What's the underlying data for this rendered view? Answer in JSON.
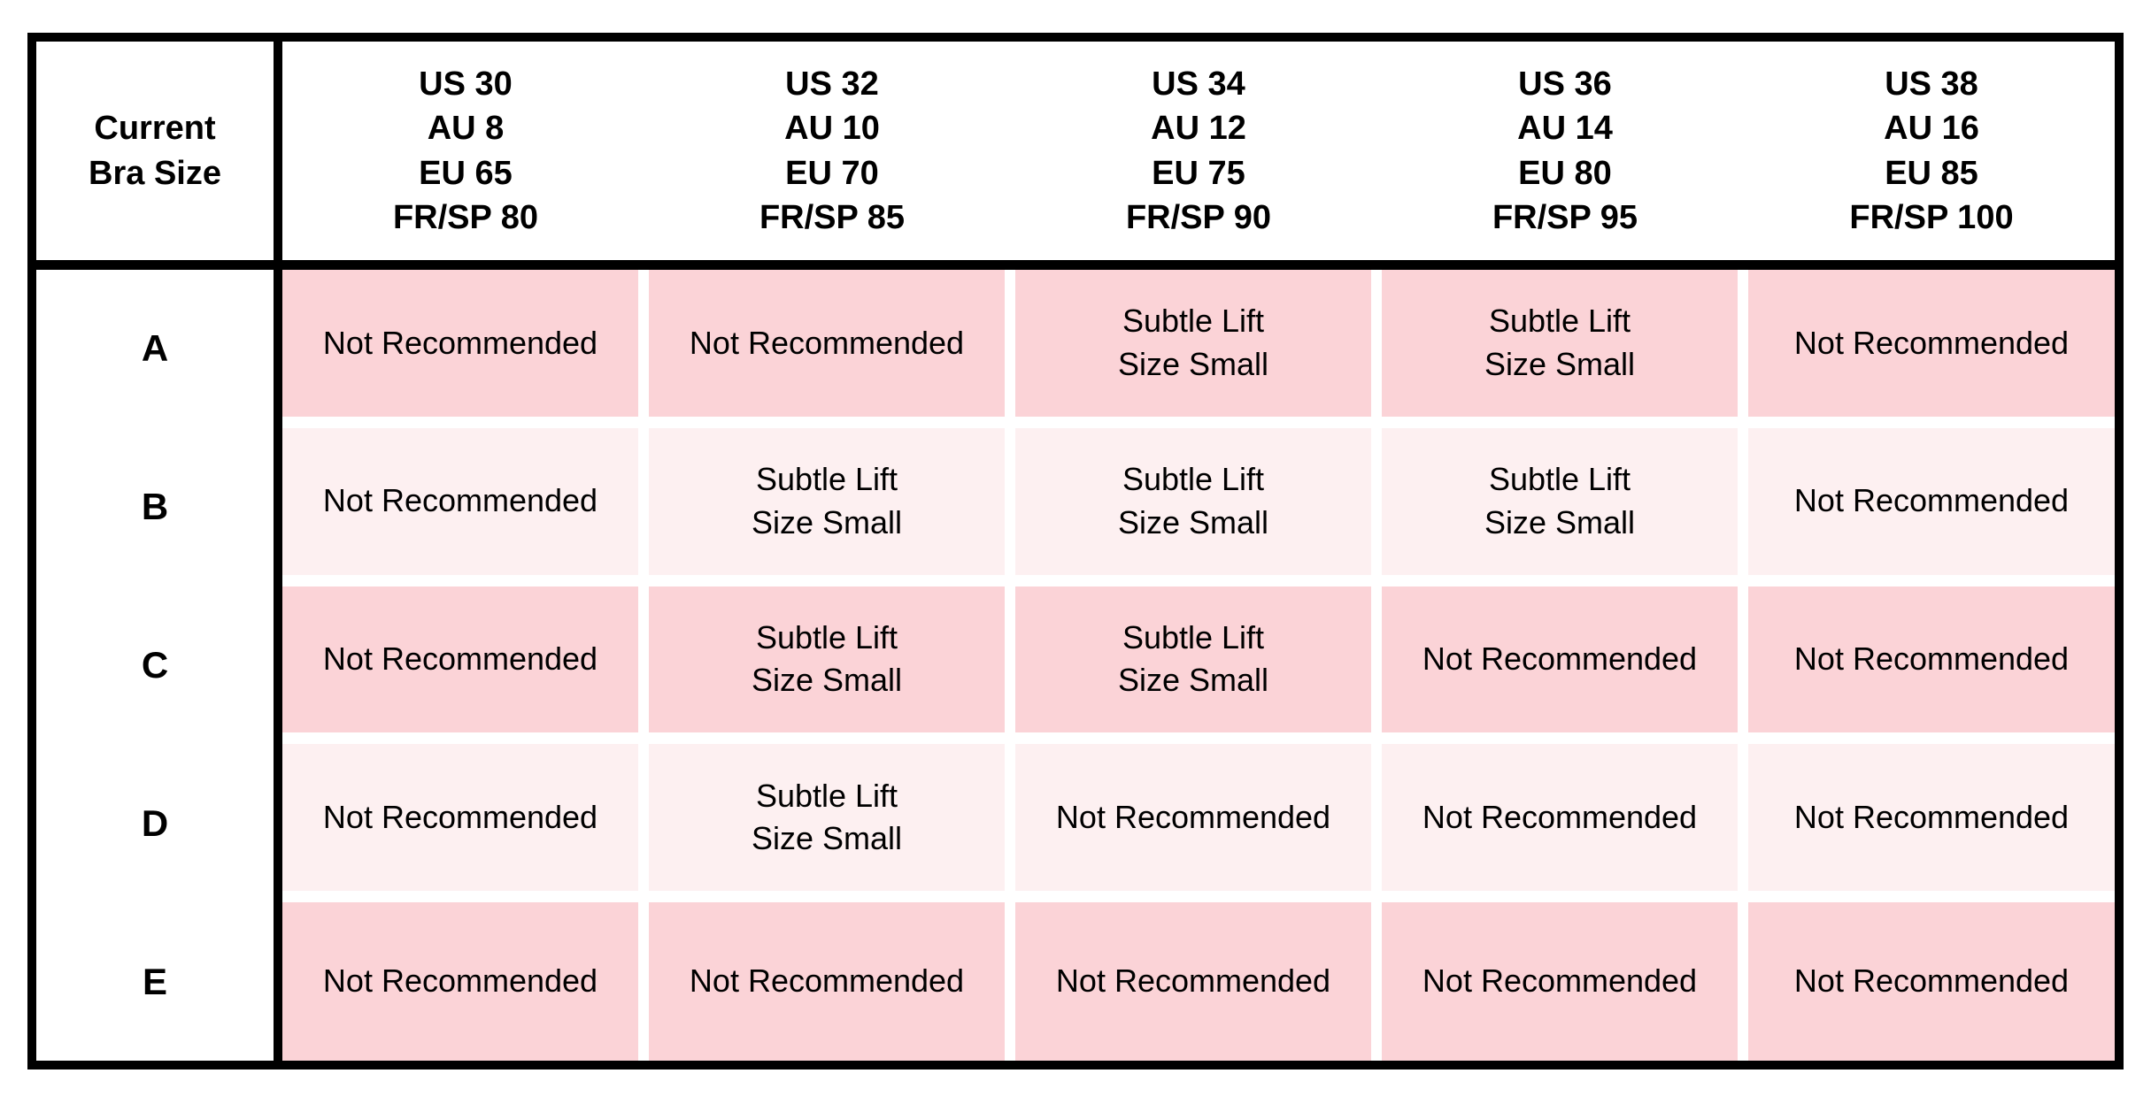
{
  "chart_data": {
    "type": "table",
    "corner_header": "Current\nBra Size",
    "column_headers": [
      "US 30\nAU 8\nEU 65\nFR/SP 80",
      "US 32\nAU 10\nEU 70\nFR/SP 85",
      "US 34\nAU 12\nEU 75\nFR/SP 90",
      "US 36\nAU 14\nEU 80\nFR/SP 95",
      "US 38\nAU 16\nEU 85\nFR/SP 100"
    ],
    "row_labels": [
      "A",
      "B",
      "C",
      "D",
      "E"
    ],
    "rows": [
      {
        "label": "A",
        "shade": "dark",
        "cells": [
          "Not Recommended",
          "Not Recommended",
          "Subtle Lift\nSize Small",
          "Subtle Lift\nSize Small",
          "Not Recommended"
        ]
      },
      {
        "label": "B",
        "shade": "light",
        "cells": [
          "Not Recommended",
          "Subtle Lift\nSize Small",
          "Subtle Lift\nSize Small",
          "Subtle Lift\nSize Small",
          "Not Recommended"
        ]
      },
      {
        "label": "C",
        "shade": "dark",
        "cells": [
          "Not Recommended",
          "Subtle Lift\nSize Small",
          "Subtle Lift\nSize Small",
          "Not Recommended",
          "Not Recommended"
        ]
      },
      {
        "label": "D",
        "shade": "light",
        "cells": [
          "Not Recommended",
          "Subtle Lift\nSize Small",
          "Not Recommended",
          "Not Recommended",
          "Not Recommended"
        ]
      },
      {
        "label": "E",
        "shade": "dark",
        "cells": [
          "Not Recommended",
          "Not Recommended",
          "Not Recommended",
          "Not Recommended",
          "Not Recommended"
        ]
      }
    ],
    "layout_hints": {
      "row_shading_order": [
        "dark",
        "light",
        "dark",
        "light",
        "dark"
      ],
      "grid": "white gutters between pink cells, thick black outer border and header/label separators"
    }
  },
  "colors": {
    "dark_pink": "#fbd3d7",
    "light_pink": "#fdf0f1",
    "border": "#000000",
    "background": "#ffffff"
  }
}
